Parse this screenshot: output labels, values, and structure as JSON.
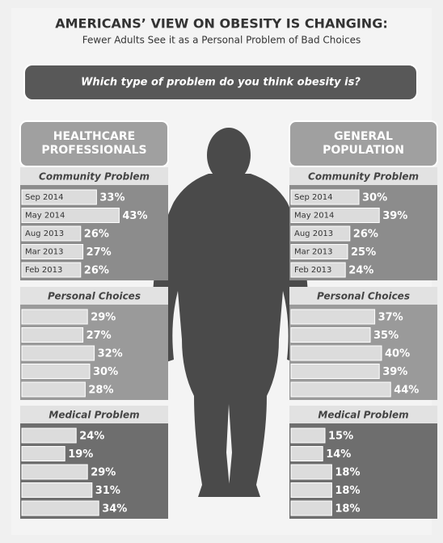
{
  "title": "AMERICANS’ VIEW ON OBESITY IS CHANGING:",
  "subtitle": "Fewer Adults See it as a Personal Problem of Bad Choices",
  "question": "Which  type of problem do you think obesity is?",
  "chart_data": [
    {
      "type": "bar",
      "title": "HEALTHCARE PROFESSIONALS",
      "categories": [
        "Sep 2014",
        "May 2014",
        "Aug 2013",
        "Mar 2013",
        "Feb 2013"
      ],
      "series": [
        {
          "name": "Community Problem",
          "values": [
            33,
            43,
            26,
            27,
            26
          ],
          "value_labels": [
            "33%",
            "43%",
            "26%",
            "27%",
            "26%"
          ]
        },
        {
          "name": "Personal Choices",
          "values": [
            29,
            27,
            32,
            30,
            28
          ],
          "value_labels": [
            "29%",
            "27%",
            "32%",
            "30%",
            "28%"
          ]
        },
        {
          "name": "Medical Problem",
          "values": [
            24,
            19,
            29,
            31,
            34
          ],
          "value_labels": [
            "24%",
            "19%",
            "29%",
            "31%",
            "34%"
          ]
        }
      ]
    },
    {
      "type": "bar",
      "title": "GENERAL POPULATION",
      "categories": [
        "Sep 2014",
        "May 2014",
        "Aug 2013",
        "Mar 2013",
        "Feb 2013"
      ],
      "series": [
        {
          "name": "Community Problem",
          "values": [
            30,
            39,
            26,
            25,
            24
          ],
          "value_labels": [
            "30%",
            "39%",
            "26%",
            "25%",
            "24%"
          ]
        },
        {
          "name": "Personal Choices",
          "values": [
            37,
            35,
            40,
            39,
            44
          ],
          "value_labels": [
            "37%",
            "35%",
            "40%",
            "39%",
            "44%"
          ]
        },
        {
          "name": "Medical Problem",
          "values": [
            15,
            14,
            18,
            18,
            18
          ],
          "value_labels": [
            "15%",
            "14%",
            "18%",
            "18%",
            "18%"
          ]
        }
      ]
    }
  ]
}
